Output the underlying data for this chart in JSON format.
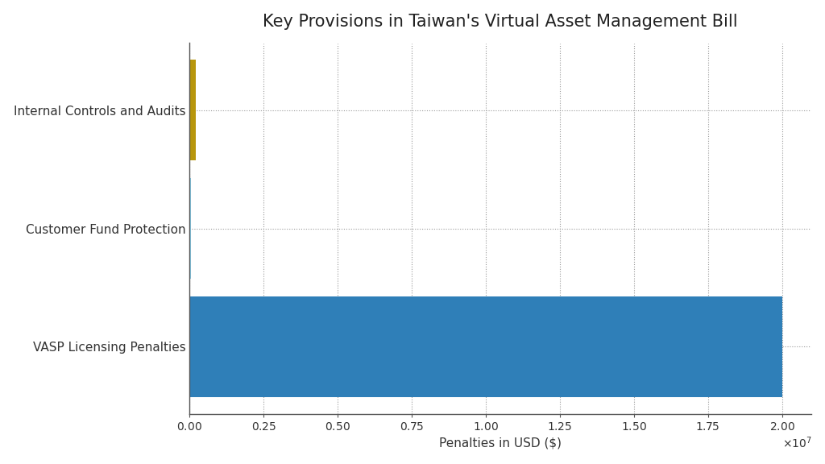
{
  "title": "Key Provisions in Taiwan's Virtual Asset Management Bill",
  "categories": [
    "VASP Licensing Penalties",
    "Customer Fund Protection",
    "Internal Controls and Audits"
  ],
  "values": [
    20000000,
    50000,
    200000
  ],
  "bar_colors": [
    "#2f7fb8",
    "#87ceeb",
    "#b8960c"
  ],
  "xlabel": "Penalties in USD ($)",
  "xlim": [
    0,
    21000000
  ],
  "background_color": "#ffffff",
  "plot_bg_color": "#ffffff",
  "title_fontsize": 15,
  "label_fontsize": 11,
  "tick_fontsize": 10,
  "bar_height": 0.85,
  "figsize": [
    10.24,
    5.76
  ]
}
